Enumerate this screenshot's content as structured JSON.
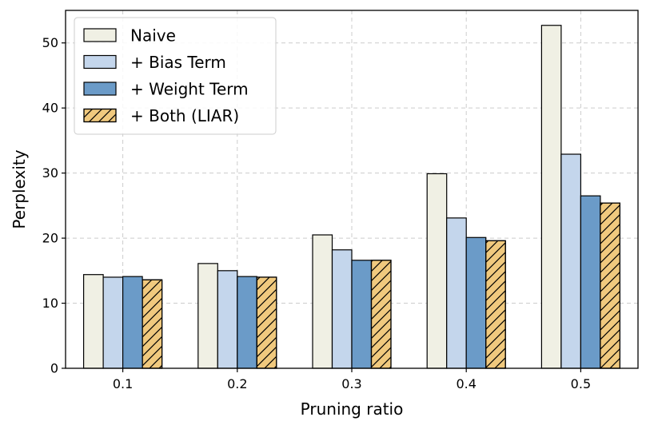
{
  "chart_data": {
    "type": "bar",
    "title": "",
    "xlabel": "Pruning ratio",
    "ylabel": "Perplexity",
    "categories": [
      "0.1",
      "0.2",
      "0.3",
      "0.4",
      "0.5"
    ],
    "ylim": [
      0,
      55
    ],
    "yticks": [
      0,
      10,
      20,
      30,
      40,
      50
    ],
    "grid": true,
    "legend_position": "top-left",
    "series": [
      {
        "name": "Naive",
        "values": [
          14.4,
          16.1,
          20.5,
          29.9,
          52.7
        ],
        "color": "#f0f0e4",
        "hatch": false
      },
      {
        "name": "+ Bias Term",
        "values": [
          14.0,
          15.0,
          18.2,
          23.1,
          32.9
        ],
        "color": "#c4d6ec",
        "hatch": false
      },
      {
        "name": "+ Weight Term",
        "values": [
          14.1,
          14.1,
          16.6,
          20.1,
          26.5
        ],
        "color": "#6b9bc8",
        "hatch": false
      },
      {
        "name": "+ Both (LIAR)",
        "values": [
          13.6,
          14.0,
          16.6,
          19.6,
          25.4
        ],
        "color": "#f0c97e",
        "hatch": true
      }
    ]
  }
}
